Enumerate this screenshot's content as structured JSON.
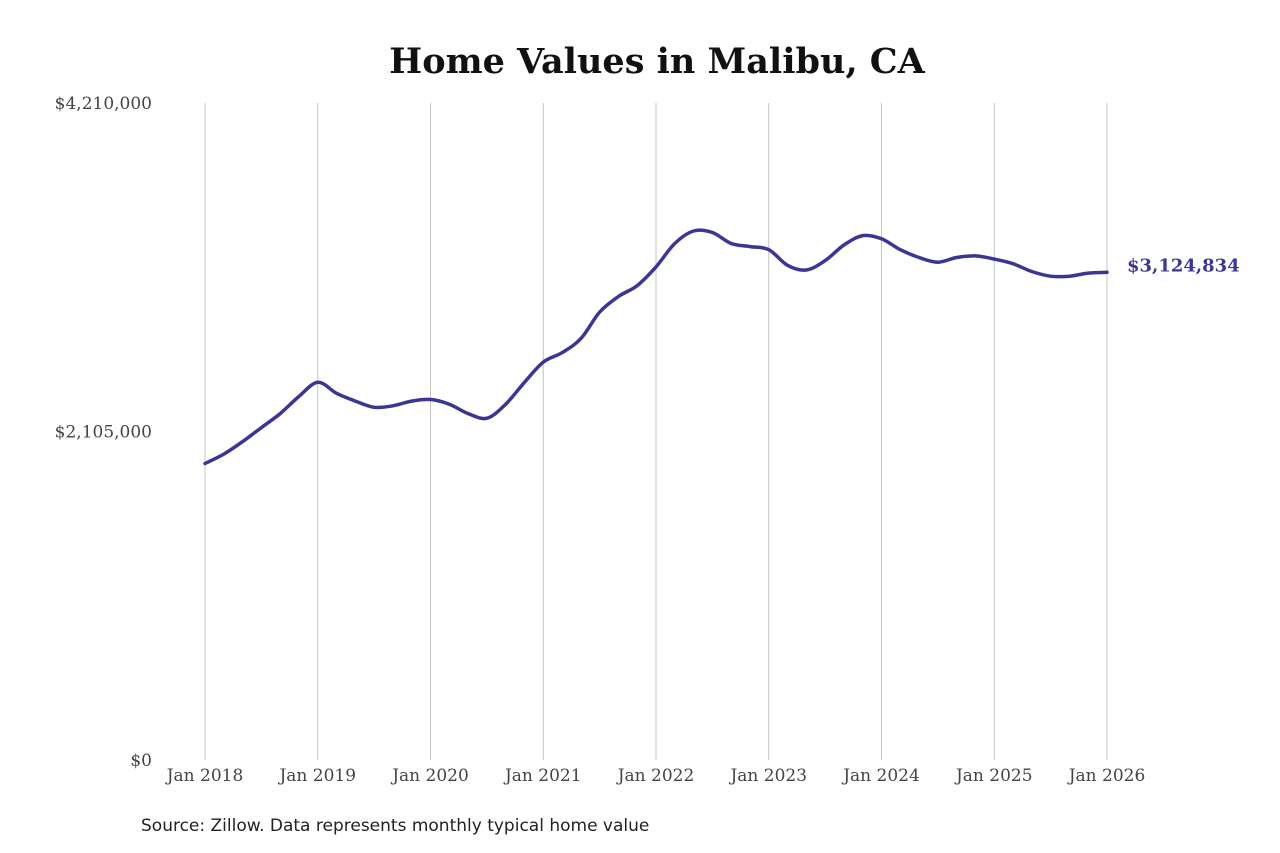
{
  "chart_data": {
    "type": "line",
    "title": "Home Values in Malibu, CA",
    "xlabel": "",
    "ylabel": "",
    "source": "Source: Zillow. Data represents monthly typical home value",
    "ylim": [
      0,
      4210000
    ],
    "y_ticks": [
      "$0",
      "$2,105,000",
      "$4,210,000"
    ],
    "y_tick_values": [
      0,
      2105000,
      4210000
    ],
    "x_ticks": [
      "Jan 2018",
      "Jan 2019",
      "Jan 2020",
      "Jan 2021",
      "Jan 2022",
      "Jan 2023",
      "Jan 2024",
      "Jan 2025",
      "Jan 2026"
    ],
    "x_range": [
      "2018-01",
      "2026-01"
    ],
    "grid": "vertical",
    "legend": "none",
    "color": "#3b3594",
    "end_label": "$3,124,834",
    "series": [
      {
        "x": [
          "2018-01",
          "2018-03",
          "2018-05",
          "2018-07",
          "2018-09",
          "2018-11",
          "2019-01",
          "2019-03",
          "2019-05",
          "2019-07",
          "2019-09",
          "2019-11",
          "2020-01",
          "2020-03",
          "2020-05",
          "2020-07",
          "2020-09",
          "2020-11",
          "2021-01",
          "2021-03",
          "2021-05",
          "2021-07",
          "2021-09",
          "2021-11",
          "2022-01",
          "2022-03",
          "2022-05",
          "2022-07",
          "2022-09",
          "2022-11",
          "2023-01",
          "2023-03",
          "2023-05",
          "2023-07",
          "2023-09",
          "2023-11",
          "2024-01",
          "2024-03",
          "2024-05",
          "2024-07",
          "2024-09",
          "2024-11",
          "2025-01",
          "2025-03",
          "2025-05",
          "2025-07",
          "2025-09",
          "2025-11",
          "2026-01"
        ],
        "values": [
          1900000,
          1960000,
          2040000,
          2130000,
          2220000,
          2330000,
          2420000,
          2350000,
          2300000,
          2260000,
          2270000,
          2300000,
          2310000,
          2280000,
          2220000,
          2190000,
          2280000,
          2420000,
          2550000,
          2610000,
          2700000,
          2870000,
          2970000,
          3040000,
          3160000,
          3310000,
          3390000,
          3380000,
          3310000,
          3290000,
          3270000,
          3170000,
          3140000,
          3200000,
          3300000,
          3360000,
          3340000,
          3270000,
          3220000,
          3190000,
          3220000,
          3230000,
          3210000,
          3180000,
          3130000,
          3100000,
          3100000,
          3120000,
          3124834
        ]
      }
    ]
  }
}
